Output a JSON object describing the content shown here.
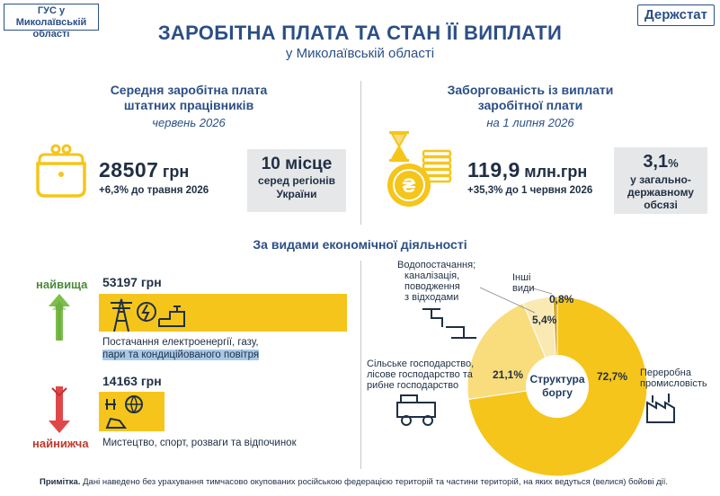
{
  "header": {
    "org_badge": "ГУС у Миколаївській області",
    "logo": "Держстат",
    "title": "ЗАРОБІТНА ПЛАТА ТА СТАН ЇЇ ВИПЛАТИ",
    "subtitle": "у Миколаївській області"
  },
  "salary": {
    "heading_line1": "Середня заробітна плата",
    "heading_line2": "штатних працівників",
    "date": "червень 2026",
    "value": "28507",
    "unit": "грн",
    "change": "+6,3%  до травня 2026",
    "rank_line1": "10 місце",
    "rank_line2": "серед регіонів",
    "rank_line3": "України"
  },
  "arrears": {
    "heading_line1": "Заборгованість із виплати",
    "heading_line2": "заробітної плати",
    "date": "на 1 липня 2026",
    "value": "119,9",
    "unit": "млн.грн",
    "change": "+35,3%  до 1 червня 2026",
    "share_value": "3,1",
    "share_unit": "%",
    "share_line1": "у загально-",
    "share_line2": "державному",
    "share_line3": "обсязі"
  },
  "activities": {
    "heading": "За видами економічної діяльності",
    "highest_label": "найвища",
    "lowest_label": "найнижча",
    "highest": {
      "value": "53197 грн",
      "amount": 53197,
      "label_line1": "Постачання електроенергії, газу,",
      "label_line2": "пари та кондиційованого повітря"
    },
    "lowest": {
      "value": "14163 грн",
      "amount": 14163,
      "label_line1": "Мистецтво, спорт, розваги та відпочинок"
    }
  },
  "chart_data": {
    "type": "pie",
    "title": "Структура боргу",
    "categories": [
      "Переробна промисловість",
      "Сільське господарство, лісове господарство та рибне господарство",
      "Водопостачання; каналізація, поводження з відходами",
      "Інші види"
    ],
    "values": [
      72.7,
      21.1,
      5.4,
      0.8
    ],
    "value_labels": [
      "72,7%",
      "21,1%",
      "5,4%",
      "0,8%"
    ],
    "colors": [
      "#f5c51b",
      "#f9dc7c",
      "#fbe9b3",
      "#d9a520"
    ],
    "labels": {
      "manufacturing_line1": "Переробна",
      "manufacturing_line2": "промисловість",
      "agri_line1": "Сільське господарство,",
      "agri_line2": "лісове господарство та",
      "agri_line3": "рибне господарство",
      "water_line1": "Водопостачання;",
      "water_line2": "каналізація,",
      "water_line3": "поводження",
      "water_line4": "з відходами",
      "other_line1": "Інші",
      "other_line2": "види",
      "center_line1": "Структура",
      "center_line2": "боргу"
    }
  },
  "footer": {
    "note_label": "Примітка.",
    "note_text": " Дані наведено без урахування тимчасово окупованих російською федерацією територій та частини територій, на яких ведуться (велися) бойові дії."
  }
}
